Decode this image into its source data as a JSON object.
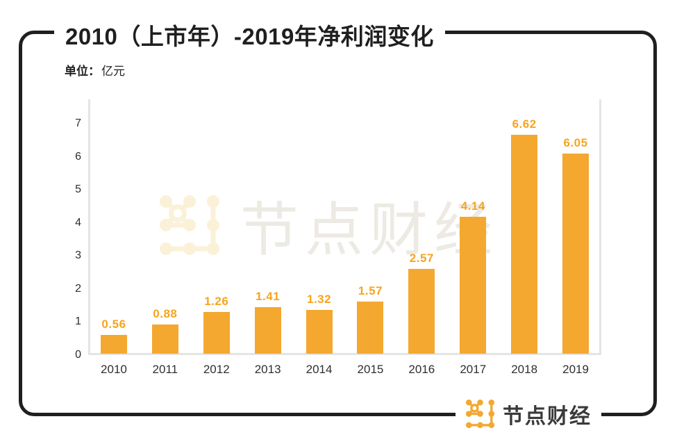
{
  "header": {
    "title": "2010（上市年）-2019年净利润变化",
    "unit_label": "单位：",
    "unit_value": "亿元"
  },
  "chart_data": {
    "type": "bar",
    "categories": [
      "2010",
      "2011",
      "2012",
      "2013",
      "2014",
      "2015",
      "2016",
      "2017",
      "2018",
      "2019"
    ],
    "values": [
      0.56,
      0.88,
      1.26,
      1.41,
      1.32,
      1.57,
      2.57,
      4.14,
      6.62,
      6.05
    ],
    "title": "2010（上市年）-2019年净利润变化",
    "xlabel": "",
    "ylabel": "单位：亿元",
    "ylim": [
      0,
      7
    ],
    "yticks": [
      0,
      1,
      2,
      3,
      4,
      5,
      6,
      7
    ],
    "grid": false,
    "legend": "none",
    "bar_color": "#F4A82F",
    "value_label_color": "#F7A41D"
  },
  "watermark": {
    "text": "节点财经"
  },
  "footer": {
    "brand": "节点财经"
  },
  "colors": {
    "accent": "#F4A82F",
    "label_orange": "#F7A41D",
    "ink": "#1F1F1F",
    "axis_gray": "#E4E4E4",
    "tick_color": "#2E2E2E",
    "brand_dark": "#3A3A3A",
    "watermark_mark": "#FAF1D8",
    "watermark_text": "#ECEAE3"
  }
}
